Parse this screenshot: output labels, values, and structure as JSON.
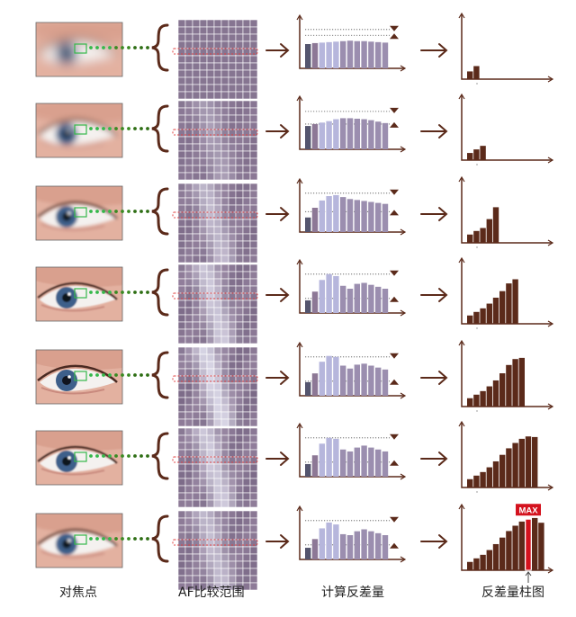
{
  "colors": {
    "brown": "#5b2a1a",
    "mauve": "#8d7896",
    "lavender": "#b6b6dc",
    "green_dots": "#2e6e14",
    "focus_box": "#35b84a",
    "red_dashed": "#e04040",
    "max_red": "#d4121e"
  },
  "column_labels": {
    "focus_point": "对焦点",
    "af_range": "AF比较范围",
    "calc_contrast": "计算反差量",
    "histogram": "反差量柱图"
  },
  "max_label": "MAX",
  "stages": [
    {
      "blur": 6,
      "dotted_lines": [
        0.8,
        0.68
      ],
      "contrast_bars": [
        0.5,
        0.52,
        0.53,
        0.54,
        0.55,
        0.56,
        0.57,
        0.56,
        0.56,
        0.55,
        0.54,
        0.53
      ],
      "histogram": [
        0.13,
        0.22
      ]
    },
    {
      "blur": 3.5,
      "dotted_lines": [
        0.78,
        0.52
      ],
      "contrast_bars": [
        0.48,
        0.52,
        0.55,
        0.58,
        0.62,
        0.64,
        0.64,
        0.63,
        0.62,
        0.6,
        0.57,
        0.54
      ],
      "histogram": [
        0.12,
        0.18,
        0.24
      ]
    },
    {
      "blur": 1.8,
      "dotted_lines": [
        0.8,
        0.42
      ],
      "contrast_bars": [
        0.3,
        0.5,
        0.65,
        0.74,
        0.76,
        0.72,
        0.68,
        0.66,
        0.64,
        0.62,
        0.6,
        0.58
      ],
      "histogram": [
        0.14,
        0.2,
        0.25,
        0.4,
        0.6
      ]
    },
    {
      "blur": 0.8,
      "dotted_lines": [
        0.8,
        0.3
      ],
      "contrast_bars": [
        0.26,
        0.44,
        0.68,
        0.8,
        0.76,
        0.56,
        0.5,
        0.6,
        0.62,
        0.58,
        0.54,
        0.5
      ],
      "histogram": [
        0.14,
        0.2,
        0.26,
        0.34,
        0.44,
        0.55,
        0.68,
        0.75
      ]
    },
    {
      "blur": 0,
      "dotted_lines": [
        0.8,
        0.3
      ],
      "contrast_bars": [
        0.28,
        0.46,
        0.7,
        0.82,
        0.8,
        0.62,
        0.56,
        0.64,
        0.66,
        0.62,
        0.58,
        0.54
      ],
      "histogram": [
        0.14,
        0.2,
        0.26,
        0.34,
        0.44,
        0.56,
        0.7,
        0.8,
        0.82
      ]
    },
    {
      "blur": 0.7,
      "dotted_lines": [
        0.8,
        0.3
      ],
      "contrast_bars": [
        0.26,
        0.44,
        0.68,
        0.8,
        0.78,
        0.56,
        0.52,
        0.6,
        0.64,
        0.6,
        0.56,
        0.52
      ],
      "histogram": [
        0.14,
        0.2,
        0.26,
        0.34,
        0.44,
        0.55,
        0.66,
        0.75,
        0.82,
        0.86,
        0.85
      ]
    },
    {
      "blur": 1.6,
      "dotted_lines": [
        0.8,
        0.3
      ],
      "contrast_bars": [
        0.24,
        0.42,
        0.64,
        0.76,
        0.72,
        0.52,
        0.5,
        0.58,
        0.62,
        0.58,
        0.54,
        0.5
      ],
      "histogram": [
        0.14,
        0.2,
        0.26,
        0.34,
        0.44,
        0.55,
        0.66,
        0.75,
        0.82,
        0.86,
        0.88,
        0.8
      ],
      "max_index": 9
    }
  ]
}
